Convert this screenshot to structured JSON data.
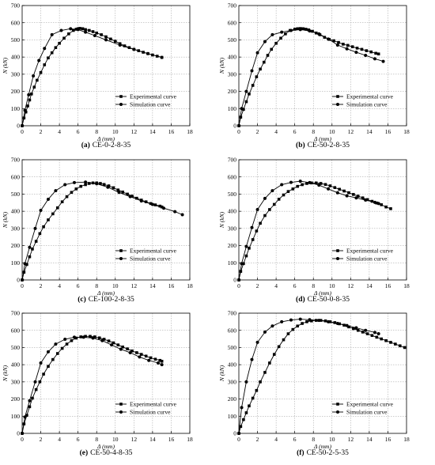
{
  "figure": {
    "xlabel": "Δ (mm)",
    "ylabel": "N (kN)",
    "xlim": [
      0,
      18
    ],
    "ylim": [
      0,
      700
    ],
    "xticks": [
      0,
      2,
      4,
      6,
      8,
      10,
      12,
      14,
      16,
      18
    ],
    "yticks": [
      0,
      100,
      200,
      300,
      400,
      500,
      600,
      700
    ],
    "grid": true,
    "legend_position": "lower-right"
  },
  "chart_data": [
    {
      "type": "line",
      "panel": "a",
      "caption_letter": "(a)",
      "caption_text": "CE-0-2-8-35",
      "xlabel": "Δ (mm)",
      "ylabel": "N (kN)",
      "xlim": [
        0,
        18
      ],
      "ylim": [
        0,
        700
      ],
      "series": [
        {
          "name": "Experimental curve",
          "x": [
            0,
            0.2,
            0.4,
            0.6,
            0.8,
            1.0,
            1.3,
            1.6,
            2.0,
            2.4,
            2.8,
            3.2,
            3.6,
            4.0,
            4.5,
            5.0,
            5.5,
            5.8,
            6.0,
            6.2,
            6.5,
            6.8,
            7.2,
            7.6,
            8.0,
            8.5,
            9.0,
            9.5,
            10.0,
            10.5,
            11.0,
            11.5,
            12.0,
            12.5,
            13.0,
            13.5,
            14.0,
            14.5,
            15.0
          ],
          "y": [
            0,
            45,
            80,
            115,
            150,
            185,
            225,
            265,
            310,
            355,
            395,
            425,
            455,
            480,
            510,
            535,
            555,
            562,
            565,
            567,
            565,
            560,
            555,
            548,
            540,
            530,
            518,
            505,
            492,
            478,
            465,
            455,
            445,
            437,
            428,
            420,
            412,
            405,
            398
          ]
        },
        {
          "name": "Simulation curve",
          "x": [
            0,
            0.3,
            0.7,
            1.2,
            1.8,
            2.4,
            3.2,
            4.2,
            5.2,
            6.0,
            6.8,
            7.8,
            9.0,
            10.5,
            12.0,
            13.5,
            15.0
          ],
          "y": [
            0,
            90,
            180,
            290,
            380,
            450,
            530,
            555,
            565,
            560,
            545,
            525,
            500,
            470,
            445,
            420,
            398
          ]
        }
      ]
    },
    {
      "type": "line",
      "panel": "b",
      "caption_letter": "(b)",
      "caption_text": "CE-50-2-8-35",
      "xlabel": "Δ (mm)",
      "ylabel": "N (kN)",
      "xlim": [
        0,
        18
      ],
      "ylim": [
        0,
        700
      ],
      "series": [
        {
          "name": "Experimental curve",
          "x": [
            0,
            0.2,
            0.5,
            0.8,
            1.1,
            1.5,
            1.9,
            2.3,
            2.7,
            3.1,
            3.5,
            4.0,
            4.5,
            5.0,
            5.5,
            6.0,
            6.3,
            6.6,
            6.9,
            7.2,
            7.5,
            7.9,
            8.3,
            8.7,
            9.2,
            9.7,
            10.2,
            10.7,
            11.2,
            11.7,
            12.2,
            12.7,
            13.2,
            13.7,
            14.2,
            14.7,
            15.0
          ],
          "y": [
            0,
            50,
            95,
            140,
            185,
            235,
            285,
            330,
            370,
            410,
            445,
            480,
            510,
            535,
            555,
            562,
            565,
            566,
            565,
            562,
            558,
            550,
            540,
            530,
            515,
            503,
            495,
            485,
            475,
            468,
            460,
            452,
            445,
            437,
            430,
            422,
            418
          ]
        },
        {
          "name": "Simulation curve",
          "x": [
            0,
            0.3,
            0.8,
            1.4,
            2.0,
            2.8,
            3.6,
            4.6,
            5.6,
            6.6,
            7.6,
            8.6,
            9.6,
            10.6,
            11.6,
            12.6,
            13.6,
            14.6,
            15.5
          ],
          "y": [
            0,
            100,
            200,
            320,
            425,
            490,
            530,
            545,
            555,
            560,
            552,
            535,
            505,
            470,
            448,
            428,
            410,
            390,
            375
          ]
        }
      ]
    },
    {
      "type": "line",
      "panel": "c",
      "caption_letter": "(c)",
      "caption_text": "CE-100-2-8-35",
      "xlabel": "Δ (mm)",
      "ylabel": "N (kN)",
      "xlim": [
        0,
        18
      ],
      "ylim": [
        0,
        700
      ],
      "series": [
        {
          "name": "Experimental curve",
          "x": [
            0,
            0.2,
            0.5,
            0.8,
            1.1,
            1.5,
            1.9,
            2.3,
            2.8,
            3.3,
            3.8,
            4.3,
            4.8,
            5.3,
            5.8,
            6.3,
            6.8,
            7.2,
            7.6,
            8.0,
            8.4,
            8.8,
            9.3,
            9.8,
            10.3,
            10.8,
            11.3,
            11.8,
            12.3,
            12.8,
            13.3,
            13.8,
            14.3,
            14.8,
            15.0
          ],
          "y": [
            0,
            45,
            90,
            135,
            180,
            225,
            270,
            310,
            350,
            385,
            420,
            455,
            485,
            510,
            530,
            545,
            555,
            562,
            565,
            565,
            562,
            556,
            548,
            537,
            524,
            512,
            500,
            488,
            476,
            465,
            455,
            445,
            437,
            430,
            425
          ]
        },
        {
          "name": "Simulation curve",
          "x": [
            0,
            0.3,
            0.8,
            1.4,
            2.0,
            2.8,
            3.6,
            4.6,
            5.6,
            6.8,
            8.0,
            9.2,
            10.4,
            11.6,
            12.8,
            14.0,
            15.2,
            16.4,
            17.2
          ],
          "y": [
            0,
            95,
            190,
            300,
            405,
            470,
            520,
            555,
            567,
            570,
            560,
            540,
            510,
            485,
            460,
            440,
            418,
            398,
            380
          ]
        }
      ]
    },
    {
      "type": "line",
      "panel": "d",
      "caption_letter": "(d)",
      "caption_text": "CE-50-0-8-35",
      "xlabel": "Δ (mm)",
      "ylabel": "N (kN)",
      "xlim": [
        0,
        18
      ],
      "ylim": [
        0,
        700
      ],
      "series": [
        {
          "name": "Experimental curve",
          "x": [
            0,
            0.2,
            0.5,
            0.8,
            1.1,
            1.5,
            1.9,
            2.3,
            2.8,
            3.3,
            3.8,
            4.3,
            4.8,
            5.3,
            5.8,
            6.3,
            6.8,
            7.3,
            7.8,
            8.3,
            8.8,
            9.3,
            9.8,
            10.3,
            10.8,
            11.3,
            11.8,
            12.3,
            12.8,
            13.3,
            13.8,
            14.3,
            14.8,
            15.3,
            15.8,
            16.3
          ],
          "y": [
            0,
            50,
            95,
            140,
            185,
            235,
            285,
            330,
            375,
            410,
            440,
            470,
            495,
            515,
            530,
            545,
            555,
            562,
            565,
            565,
            562,
            556,
            548,
            538,
            528,
            518,
            508,
            498,
            488,
            478,
            468,
            458,
            448,
            438,
            425,
            415
          ]
        },
        {
          "name": "Simulation curve",
          "x": [
            0,
            0.3,
            0.8,
            1.4,
            2.0,
            2.8,
            3.6,
            4.6,
            5.6,
            6.6,
            7.6,
            8.6,
            9.6,
            10.6,
            11.6,
            12.6,
            13.6,
            14.6,
            15.0
          ],
          "y": [
            0,
            95,
            195,
            305,
            410,
            475,
            520,
            555,
            568,
            575,
            567,
            552,
            530,
            508,
            490,
            478,
            465,
            452,
            445
          ]
        }
      ]
    },
    {
      "type": "line",
      "panel": "e",
      "caption_letter": "(e)",
      "caption_text": "CE-50-4-8-35",
      "xlabel": "Δ (mm)",
      "ylabel": "N (kN)",
      "xlim": [
        0,
        18
      ],
      "ylim": [
        0,
        700
      ],
      "series": [
        {
          "name": "Experimental curve",
          "x": [
            0,
            0.2,
            0.5,
            0.8,
            1.1,
            1.5,
            1.9,
            2.3,
            2.8,
            3.3,
            3.8,
            4.3,
            4.8,
            5.3,
            5.8,
            6.3,
            6.8,
            7.3,
            7.8,
            8.3,
            8.8,
            9.3,
            9.8,
            10.3,
            10.8,
            11.3,
            11.8,
            12.3,
            12.8,
            13.3,
            13.8,
            14.3,
            14.8,
            15.0
          ],
          "y": [
            0,
            55,
            105,
            155,
            205,
            255,
            300,
            345,
            390,
            430,
            465,
            495,
            520,
            540,
            555,
            562,
            565,
            565,
            562,
            556,
            548,
            538,
            527,
            515,
            503,
            492,
            480,
            470,
            460,
            450,
            440,
            432,
            425,
            420
          ]
        },
        {
          "name": "Simulation curve",
          "x": [
            0,
            0.3,
            0.8,
            1.4,
            2.0,
            2.8,
            3.6,
            4.6,
            5.6,
            6.6,
            7.6,
            8.6,
            9.6,
            10.6,
            11.6,
            12.6,
            13.6,
            14.6,
            15.0
          ],
          "y": [
            0,
            95,
            190,
            300,
            410,
            475,
            520,
            548,
            560,
            560,
            555,
            540,
            515,
            490,
            470,
            445,
            425,
            410,
            400
          ]
        }
      ]
    },
    {
      "type": "line",
      "panel": "f",
      "caption_letter": "(f)",
      "caption_text": "CE-50-2-5-35",
      "xlabel": "Δ (mm)",
      "ylabel": "N (kN)",
      "xlim": [
        0,
        18
      ],
      "ylim": [
        0,
        700
      ],
      "series": [
        {
          "name": "Experimental curve",
          "x": [
            0,
            0.2,
            0.5,
            0.8,
            1.1,
            1.5,
            1.9,
            2.3,
            2.8,
            3.3,
            3.8,
            4.3,
            4.8,
            5.3,
            5.8,
            6.3,
            6.8,
            7.3,
            7.8,
            8.3,
            8.8,
            9.3,
            9.8,
            10.3,
            10.8,
            11.3,
            11.8,
            12.3,
            12.8,
            13.3,
            13.8,
            14.3,
            14.8,
            15.3,
            15.8,
            16.3,
            16.8,
            17.3,
            17.8
          ],
          "y": [
            0,
            40,
            80,
            120,
            160,
            205,
            250,
            300,
            355,
            410,
            460,
            505,
            545,
            580,
            605,
            625,
            640,
            650,
            655,
            658,
            658,
            655,
            650,
            645,
            638,
            630,
            620,
            610,
            600,
            590,
            580,
            570,
            560,
            550,
            540,
            530,
            520,
            510,
            500
          ]
        },
        {
          "name": "Simulation curve",
          "x": [
            0,
            0.3,
            0.8,
            1.4,
            2.0,
            2.8,
            3.6,
            4.6,
            5.6,
            6.6,
            7.6,
            8.6,
            9.6,
            10.6,
            11.6,
            12.6,
            13.6,
            14.6,
            15.0
          ],
          "y": [
            0,
            150,
            300,
            430,
            530,
            590,
            625,
            650,
            660,
            665,
            662,
            658,
            650,
            640,
            628,
            615,
            600,
            588,
            580
          ]
        }
      ]
    }
  ]
}
